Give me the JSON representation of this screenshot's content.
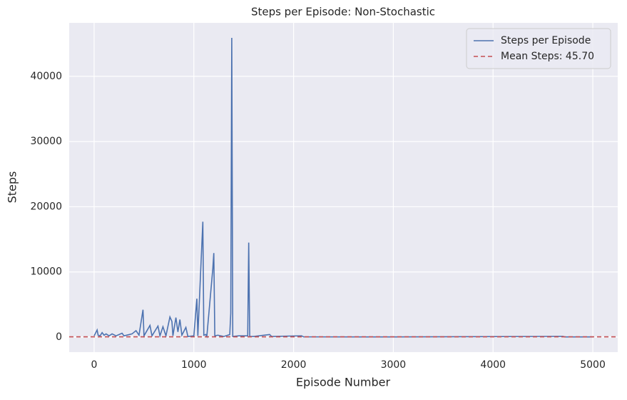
{
  "chart_data": {
    "type": "line",
    "title": "Steps per Episode: Non-Stochastic",
    "x_label": "Episode Number",
    "y_label": "Steps",
    "x": [
      0,
      20,
      30,
      40,
      60,
      80,
      100,
      120,
      150,
      180,
      220,
      280,
      300,
      380,
      420,
      450,
      490,
      500,
      560,
      580,
      640,
      660,
      690,
      720,
      760,
      780,
      790,
      820,
      840,
      860,
      880,
      920,
      940,
      1000,
      1030,
      1040,
      1090,
      1100,
      1120,
      1130,
      1190,
      1200,
      1210,
      1240,
      1300,
      1360,
      1370,
      1380,
      1390,
      1450,
      1540,
      1550,
      1560,
      1600,
      1760,
      1780,
      2080,
      2100,
      3000,
      4700,
      4720,
      5000
    ],
    "series": [
      {
        "name": "Steps per Episode",
        "color": "#4c72b0",
        "values": [
          200,
          800,
          1100,
          300,
          200,
          700,
          300,
          500,
          200,
          500,
          200,
          600,
          200,
          500,
          1000,
          300,
          4200,
          200,
          1800,
          200,
          1700,
          200,
          1600,
          200,
          3100,
          2400,
          200,
          3000,
          800,
          2700,
          300,
          1500,
          100,
          200,
          5900,
          200,
          17700,
          300,
          400,
          100,
          10500,
          12900,
          200,
          300,
          100,
          400,
          3700,
          45900,
          100,
          200,
          200,
          14500,
          100,
          100,
          400,
          100,
          200,
          50,
          30,
          120,
          30,
          30
        ]
      }
    ],
    "mean": {
      "name": "Mean Steps: 45.70",
      "value": 45.7,
      "color": "#c44e52"
    },
    "xlim": [
      -250,
      5250
    ],
    "ylim": [
      -2300,
      48200
    ],
    "xticks": [
      0,
      1000,
      2000,
      3000,
      4000,
      5000
    ],
    "yticks": [
      0,
      10000,
      20000,
      30000,
      40000
    ],
    "grid": true,
    "legend": "upper right"
  }
}
